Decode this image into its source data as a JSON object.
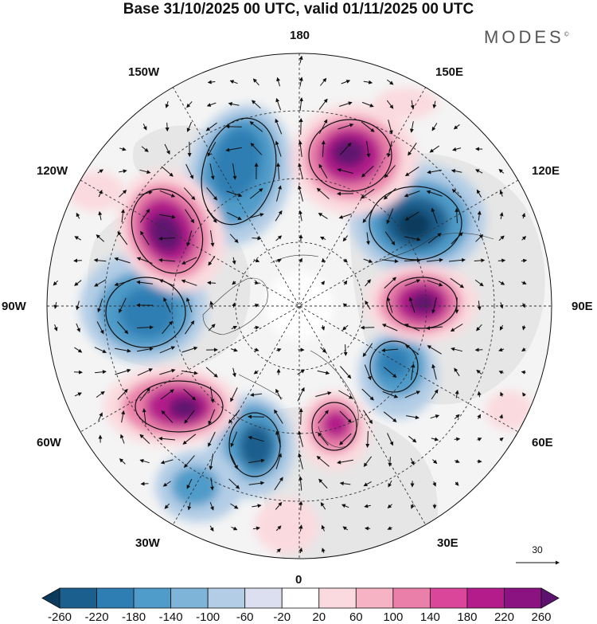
{
  "title": "Base 31/10/2025 00 UTC, valid 01/11/2025 00 UTC",
  "brand": "MODES",
  "brand_mark": "©",
  "longitude_labels": {
    "top": "180",
    "bottom": "0",
    "left": "90W",
    "right": "90E",
    "upper_left_1": "150W",
    "upper_left_2": "120W",
    "upper_right_1": "150E",
    "upper_right_2": "120E",
    "lower_left_1": "60W",
    "lower_left_2": "30W",
    "lower_right_1": "60E",
    "lower_right_2": "30E"
  },
  "vector_reference": {
    "label": "30"
  },
  "colorbar": {
    "labels": [
      "-260",
      "-220",
      "-180",
      "-140",
      "-100",
      "-60",
      "-20",
      "20",
      "60",
      "100",
      "140",
      "180",
      "220",
      "260"
    ],
    "colors": [
      "#0b3a5c",
      "#1a5f8e",
      "#2f7eb3",
      "#4f9bc9",
      "#7fb4d9",
      "#b3cde6",
      "#dcdff0",
      "#ffffff",
      "#fbdadf",
      "#f5b3c3",
      "#ea80a9",
      "#d9469a",
      "#b31c8a",
      "#8a1281",
      "#5e1270"
    ]
  },
  "colors": {
    "continent_fill": "#e8e8e8",
    "ocean_fill": "#f4f4f4",
    "coast_line": "#333333",
    "grid_line": "#333333"
  }
}
